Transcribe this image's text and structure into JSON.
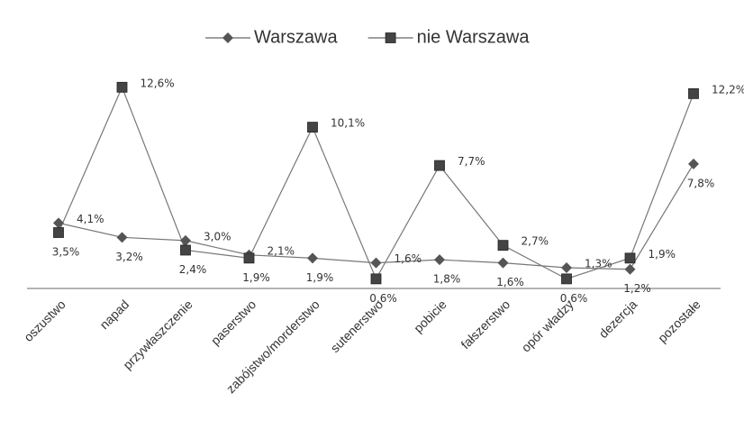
{
  "chart_data": {
    "type": "line",
    "categories": [
      "oszustwo",
      "napad",
      "przywłaszczenie",
      "paserstwo",
      "zabójstwo/morderstwo",
      "sutenerstwo",
      "pobicie",
      "fałszerstwo",
      "opór władzy",
      "dezercja",
      "pozostałe"
    ],
    "series": [
      {
        "name": "Warszawa",
        "color": "#555555",
        "marker": "diamond",
        "values": [
          4.1,
          3.2,
          3.0,
          2.1,
          1.9,
          1.6,
          1.8,
          1.6,
          1.3,
          1.2,
          7.8
        ],
        "value_labels": [
          "4,1%",
          "3,2%",
          "3,0%",
          "2,1%",
          "1,9%",
          "1,6%",
          "1,8%",
          "1,6%",
          "1,3%",
          "1,2%",
          "7,8%"
        ]
      },
      {
        "name": "nie Warszawa",
        "color": "#444444",
        "marker": "square",
        "values": [
          3.5,
          12.6,
          2.4,
          1.9,
          10.1,
          0.6,
          7.7,
          2.7,
          0.6,
          1.9,
          12.2
        ],
        "value_labels": [
          "3,5%",
          "12,6%",
          "2,4%",
          "1,9%",
          "10,1%",
          "0,6%",
          "7,7%",
          "2,7%",
          "0,6%",
          "1,9%",
          "12,2%"
        ]
      }
    ],
    "ylim": [
      0,
      14
    ]
  }
}
